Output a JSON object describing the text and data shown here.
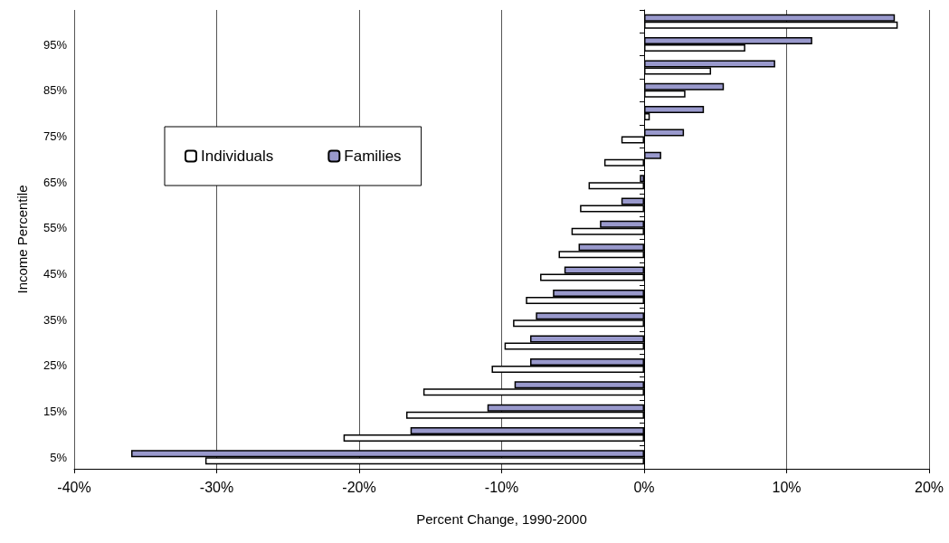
{
  "chart_data": {
    "type": "bar",
    "orientation": "horizontal",
    "xlabel": "Percent Change, 1990-2000",
    "ylabel": "Income Percentile",
    "categories": [
      null,
      "95%",
      null,
      "85%",
      null,
      "75%",
      null,
      "65%",
      null,
      "55%",
      null,
      "45%",
      null,
      "35%",
      null,
      "25%",
      null,
      "15%",
      null,
      "5%"
    ],
    "series": [
      {
        "name": "Families",
        "color": "#9999cc",
        "values": [
          17.6,
          11.8,
          9.2,
          5.6,
          4.2,
          2.8,
          1.2,
          -0.3,
          -1.6,
          -3.1,
          -4.6,
          -5.6,
          -6.4,
          -7.6,
          -8.0,
          -8.0,
          -9.1,
          -11.0,
          -16.4,
          -36
        ]
      },
      {
        "name": "Individuals",
        "color": "#ffffff",
        "values": [
          17.8,
          7.1,
          4.7,
          2.9,
          0.4,
          -1.6,
          -2.8,
          -3.9,
          -4.5,
          -5.1,
          -6.0,
          -7.3,
          -8.3,
          -9.2,
          -9.8,
          -10.7,
          -15.5,
          -16.7,
          -21.1,
          -30.8
        ]
      }
    ],
    "xlim": [
      -40,
      20
    ],
    "xticks": [
      {
        "value": -40,
        "label": "-40%"
      },
      {
        "value": -30,
        "label": "-30%"
      },
      {
        "value": -20,
        "label": "-20%"
      },
      {
        "value": -10,
        "label": "-10%"
      },
      {
        "value": 0,
        "label": "0%"
      },
      {
        "value": 10,
        "label": "10%"
      },
      {
        "value": 20,
        "label": "20%"
      }
    ],
    "grid": "x",
    "legend": "left"
  }
}
